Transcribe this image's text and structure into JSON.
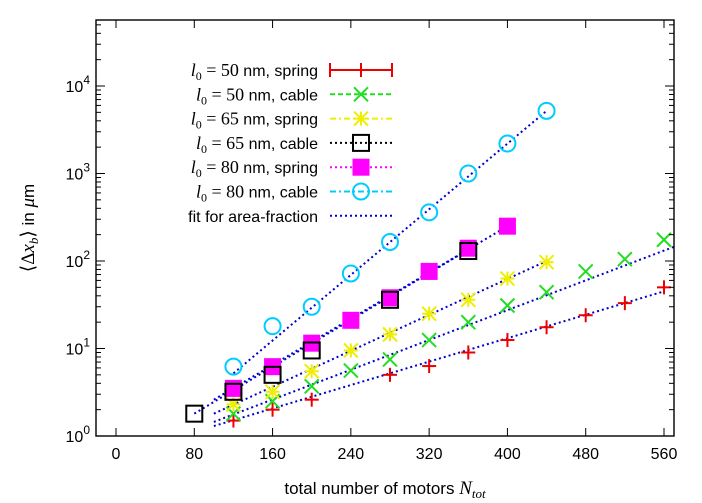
{
  "chart_data": {
    "type": "scatter",
    "xlabel": "total number of motors N_tot",
    "ylabel": "⟨Δx_b⟩ in μm",
    "xlim": [
      0,
      570
    ],
    "ylim": [
      1,
      100000
    ],
    "yscale": "log",
    "x_ticks": [
      "0",
      "80",
      "160",
      "240",
      "320",
      "400",
      "480",
      "560"
    ],
    "x_tick_values": [
      0,
      80,
      160,
      240,
      320,
      400,
      480,
      560
    ],
    "y_ticks": [
      "10^0",
      "10^1",
      "10^2",
      "10^3",
      "10^4"
    ],
    "y_tick_values": [
      1,
      10,
      100,
      1000,
      10000
    ],
    "legend_position": "top-left",
    "grid": false,
    "series": [
      {
        "name": "l_0 = 50 nm, spring",
        "color": "#ee0000",
        "marker": "plus",
        "style": "solid",
        "x": [
          120,
          160,
          200,
          280,
          320,
          360,
          400,
          440,
          480,
          520,
          560
        ],
        "y": [
          1.5,
          2.0,
          2.6,
          5.0,
          6.3,
          9.0,
          12.5,
          17.5,
          24,
          33,
          50
        ]
      },
      {
        "name": "l_0 = 50 nm, cable",
        "color": "#22dd22",
        "marker": "cross",
        "style": "dashed",
        "x": [
          120,
          160,
          200,
          240,
          280,
          320,
          360,
          400,
          440,
          480,
          520,
          560
        ],
        "y": [
          1.8,
          2.5,
          3.7,
          5.6,
          7.5,
          12.5,
          20,
          31,
          44,
          76,
          105,
          175
        ]
      },
      {
        "name": "l_0 = 65 nm, spring",
        "color": "#eeee00",
        "marker": "asterisk",
        "style": "dashdot",
        "x": [
          120,
          160,
          200,
          240,
          280,
          320,
          360,
          400,
          440
        ],
        "y": [
          2.3,
          3.2,
          5.5,
          9.5,
          14.5,
          25,
          36,
          63,
          97
        ]
      },
      {
        "name": "l_0 = 65 nm, cable",
        "color": "#000000",
        "marker": "square-open",
        "style": "dotted",
        "x": [
          80,
          120,
          160,
          200,
          280,
          360
        ],
        "y": [
          1.8,
          3.2,
          5.0,
          9.5,
          36,
          130
        ]
      },
      {
        "name": "l_0 = 80 nm, spring",
        "color": "#ff00ff",
        "marker": "square-filled",
        "style": "dotted",
        "x": [
          120,
          160,
          200,
          240,
          280,
          320,
          360,
          400
        ],
        "y": [
          3.5,
          6.2,
          11.5,
          21,
          38,
          76,
          140,
          250
        ]
      },
      {
        "name": "l_0 = 80 nm, cable",
        "color": "#00ccff",
        "marker": "circle-open",
        "style": "dashdot",
        "x": [
          120,
          160,
          200,
          240,
          280,
          320,
          360,
          400,
          440
        ],
        "y": [
          6.2,
          18,
          30,
          72,
          165,
          360,
          1000,
          2200,
          5200
        ]
      }
    ],
    "fit": {
      "name": "fit for area-fraction",
      "color": "#0000cc",
      "style": "dotted",
      "lines": [
        {
          "x": [
            100,
            560
          ],
          "y": [
            1.3,
            45
          ]
        },
        {
          "x": [
            100,
            570
          ],
          "y": [
            1.45,
            145
          ]
        },
        {
          "x": [
            100,
            440
          ],
          "y": [
            1.8,
            100
          ]
        },
        {
          "x": [
            80,
            360
          ],
          "y": [
            1.8,
            135
          ]
        },
        {
          "x": [
            100,
            400
          ],
          "y": [
            2.6,
            250
          ]
        },
        {
          "x": [
            120,
            440
          ],
          "y": [
            5.2,
            5200
          ]
        }
      ]
    }
  }
}
